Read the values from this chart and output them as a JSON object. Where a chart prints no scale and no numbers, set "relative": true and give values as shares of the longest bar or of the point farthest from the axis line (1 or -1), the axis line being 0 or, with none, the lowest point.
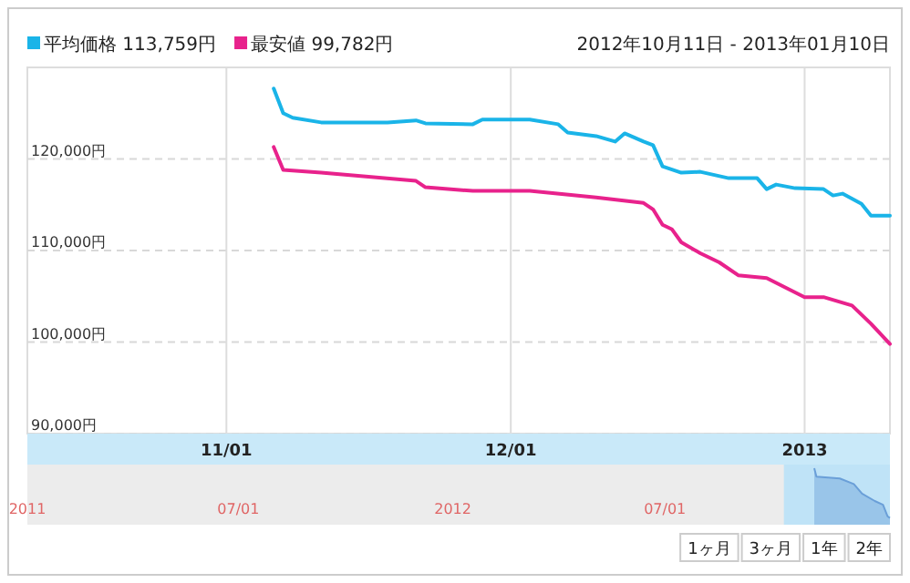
{
  "chart_data": [
    {
      "type": "line",
      "subtitle": "2012年10月11日 - 2013年01月10日",
      "legend": "top left",
      "grid": true,
      "xlim": [
        "2012-10-11",
        "2013-01-10"
      ],
      "xticks": [
        {
          "value": "2012-11-01",
          "label": "11/01"
        },
        {
          "value": "2012-12-01",
          "label": "12/01"
        },
        {
          "value": "2013-01-01",
          "label": "2013"
        }
      ],
      "ylim": [
        90000,
        130000
      ],
      "yticks": [
        {
          "value": 90000,
          "label": "90,000円"
        },
        {
          "value": 100000,
          "label": "100,000円"
        },
        {
          "value": 110000,
          "label": "110,000円"
        },
        {
          "value": 120000,
          "label": "120,000円"
        }
      ],
      "series": [
        {
          "name": "平均価格 113,759円",
          "color": "#1ab4e8",
          "x": [
            "2012-11-06",
            "2012-11-07",
            "2012-11-08",
            "2012-11-11",
            "2012-11-18",
            "2012-11-21",
            "2012-11-22",
            "2012-11-27",
            "2012-11-28",
            "2012-12-03",
            "2012-12-06",
            "2012-12-07",
            "2012-12-10",
            "2012-12-12",
            "2012-12-13",
            "2012-12-15",
            "2012-12-16",
            "2012-12-17",
            "2012-12-19",
            "2012-12-21",
            "2012-12-24",
            "2012-12-27",
            "2012-12-28",
            "2012-12-29",
            "2012-12-31",
            "2013-01-03",
            "2013-01-04",
            "2013-01-05",
            "2013-01-07",
            "2013-01-08",
            "2013-01-10"
          ],
          "values": [
            127700,
            125000,
            124500,
            124000,
            124000,
            124200,
            123900,
            123800,
            124300,
            124300,
            123800,
            122900,
            122500,
            121900,
            122800,
            121900,
            121500,
            119200,
            118500,
            118600,
            117900,
            117900,
            116700,
            117200,
            116800,
            116700,
            116000,
            116200,
            115100,
            113800,
            113800
          ]
        },
        {
          "name": "最安値 99,782円",
          "color": "#e8228c",
          "x": [
            "2012-11-06",
            "2012-11-07",
            "2012-11-11",
            "2012-11-21",
            "2012-11-22",
            "2012-11-27",
            "2012-12-03",
            "2012-12-10",
            "2012-12-15",
            "2012-12-16",
            "2012-12-17",
            "2012-12-18",
            "2012-12-19",
            "2012-12-21",
            "2012-12-23",
            "2012-12-25",
            "2012-12-28",
            "2013-01-01",
            "2013-01-03",
            "2013-01-06",
            "2013-01-07",
            "2013-01-08",
            "2013-01-10"
          ],
          "values": [
            121300,
            118800,
            118500,
            117600,
            116900,
            116500,
            116500,
            115800,
            115200,
            114500,
            112800,
            112300,
            110900,
            109700,
            108700,
            107300,
            107000,
            104900,
            104900,
            104000,
            103000,
            102000,
            99800
          ]
        }
      ]
    },
    {
      "type": "area",
      "relative": true,
      "tick_labels": "x",
      "xlim": [
        "2011-01-01",
        "2013-01-10"
      ],
      "xticks": [
        {
          "value": "2011-01-01",
          "label": "2011"
        },
        {
          "value": "2011-07-01",
          "label": "07/01"
        },
        {
          "value": "2012-01-01",
          "label": "2012"
        },
        {
          "value": "2012-07-01",
          "label": "07/01"
        }
      ],
      "bands": [
        {
          "axis": "x",
          "from": "2012-10-11",
          "to": "2013-01-10",
          "color": "#bfe3f7"
        }
      ],
      "series": [
        {
          "color": "#6a9fd8",
          "x": [
            "2012-11-06",
            "2012-11-08",
            "2012-11-28",
            "2012-12-10",
            "2012-12-17",
            "2012-12-28",
            "2013-01-04",
            "2013-01-08",
            "2013-01-10"
          ],
          "values": [
            1,
            0.85,
            0.82,
            0.72,
            0.55,
            0.42,
            0.35,
            0.15,
            0.12
          ]
        }
      ],
      "annotations": [
        "1ヶ月",
        "3ヶ月",
        "1年",
        "2年"
      ]
    }
  ]
}
